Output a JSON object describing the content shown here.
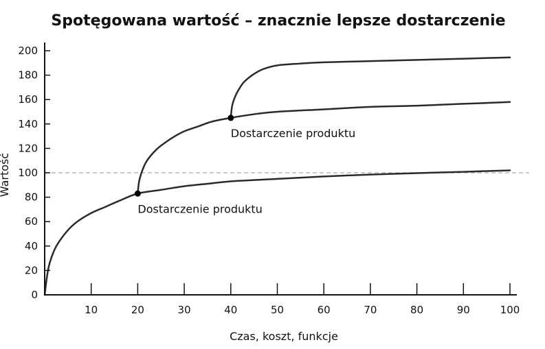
{
  "chart_data": {
    "type": "line",
    "title": "Spotęgowana wartość – znacznie lepsze dostarczenie",
    "xlabel": "Czas, koszt, funkcje",
    "ylabel": "Wartość",
    "xlim": [
      0,
      100
    ],
    "ylim": [
      0,
      200
    ],
    "x_ticks": [
      10,
      20,
      30,
      40,
      50,
      60,
      70,
      80,
      90,
      100
    ],
    "y_ticks": [
      0,
      20,
      40,
      60,
      80,
      100,
      120,
      140,
      160,
      180,
      200
    ],
    "reference_line": {
      "y": 100,
      "style": "dashed"
    },
    "series": [
      {
        "x": [
          0,
          0.5,
          1,
          2,
          3,
          5,
          7,
          10,
          13,
          16,
          20,
          25,
          30,
          35,
          40,
          50,
          60,
          70,
          80,
          90,
          100
        ],
        "values": [
          0,
          15,
          25,
          36,
          43,
          53,
          60,
          67,
          72,
          77,
          83,
          86,
          89,
          91,
          93,
          95,
          97,
          98.5,
          99.7,
          100.8,
          102
        ]
      },
      {
        "x": [
          20,
          20.3,
          21,
          22,
          24,
          26,
          28,
          30,
          33,
          36,
          40,
          45,
          50,
          60,
          70,
          80,
          90,
          100
        ],
        "values": [
          83,
          93,
          102,
          110,
          119,
          125,
          130,
          134,
          138,
          142,
          145,
          148,
          150,
          152,
          154,
          155,
          156.5,
          158
        ]
      },
      {
        "x": [
          40,
          40.3,
          41,
          42,
          43,
          45,
          47,
          50,
          55,
          60,
          70,
          80,
          90,
          100
        ],
        "values": [
          145,
          155,
          163,
          170,
          175,
          181,
          185,
          188,
          189.5,
          190.5,
          191.5,
          192.5,
          193.5,
          194.5
        ]
      }
    ],
    "points": [
      {
        "x": 20,
        "y": 83
      },
      {
        "x": 40,
        "y": 145
      }
    ],
    "annotations": [
      {
        "text": "Dostarczenie produktu",
        "x": 20,
        "y": 83
      },
      {
        "text": "Dostarczenie produktu",
        "x": 40,
        "y": 145
      }
    ],
    "grid": false,
    "legend": "none"
  }
}
